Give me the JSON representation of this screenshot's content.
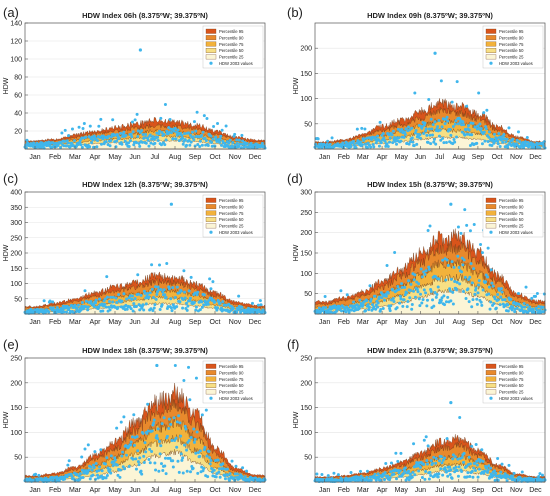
{
  "colors": {
    "p95": "#d9541b",
    "p90": "#e8892c",
    "p75": "#f2b23b",
    "p50": "#f7df84",
    "p25": "#fbf5d6",
    "points": "#3fb6ec",
    "axis": "#555555",
    "grid": "#e5e5e5"
  },
  "legend": {
    "p95": "Percentile 95",
    "p90": "Percentile 90",
    "p75": "Percentile 75",
    "p50": "Percentile 50",
    "p25": "Percentile 25",
    "points": "HDW 2003 values"
  },
  "chart_data": [
    {
      "type": "area",
      "panel_label": "(a)",
      "title": "HDW Index 06h (8.375ºW; 39.375ºN)",
      "ylabel": "HDW",
      "x_categories": [
        "Jan",
        "Feb",
        "Mar",
        "Apr",
        "May",
        "Jun",
        "Jul",
        "Aug",
        "Sep",
        "Oct",
        "Nov",
        "Dec"
      ],
      "ylim": [
        0,
        140
      ],
      "yticks": [
        20,
        40,
        60,
        80,
        100,
        120,
        140
      ],
      "series": [
        {
          "name": "Percentile 95",
          "monthly_values": [
            9,
            11,
            16,
            20,
            24,
            28,
            32,
            30,
            27,
            20,
            13,
            10
          ]
        },
        {
          "name": "Percentile 90",
          "monthly_values": [
            8,
            9,
            13,
            17,
            20,
            23,
            26,
            25,
            22,
            16,
            11,
            8
          ]
        },
        {
          "name": "Percentile 75",
          "monthly_values": [
            6,
            7,
            10,
            13,
            15,
            17,
            20,
            19,
            17,
            12,
            8,
            6
          ]
        },
        {
          "name": "Percentile 50",
          "monthly_values": [
            4,
            5,
            7,
            9,
            11,
            12,
            14,
            14,
            12,
            9,
            6,
            4
          ]
        },
        {
          "name": "Percentile 25",
          "monthly_values": [
            3,
            3,
            4,
            6,
            7,
            8,
            9,
            9,
            8,
            6,
            4,
            3
          ]
        }
      ],
      "hdw_2003": {
        "name": "HDW 2003 values",
        "max_value": 110
      }
    },
    {
      "type": "area",
      "panel_label": "(b)",
      "title": "HDW Index 09h (8.375ºW; 39.375ºN)",
      "ylabel": "HDW",
      "x_categories": [
        "Jan",
        "Feb",
        "Mar",
        "Apr",
        "May",
        "Jun",
        "Jul",
        "Aug",
        "Sep",
        "Oct",
        "Nov",
        "Dec"
      ],
      "ylim": [
        0,
        250
      ],
      "yticks": [
        50,
        100,
        150,
        200
      ],
      "series": [
        {
          "name": "Percentile 95",
          "monthly_values": [
            14,
            18,
            30,
            45,
            58,
            75,
            92,
            85,
            70,
            45,
            25,
            15
          ]
        },
        {
          "name": "Percentile 90",
          "monthly_values": [
            12,
            15,
            25,
            37,
            48,
            62,
            76,
            72,
            60,
            38,
            21,
            13
          ]
        },
        {
          "name": "Percentile 75",
          "monthly_values": [
            9,
            11,
            18,
            27,
            35,
            46,
            56,
            53,
            45,
            28,
            16,
            10
          ]
        },
        {
          "name": "Percentile 50",
          "monthly_values": [
            6,
            8,
            12,
            18,
            24,
            31,
            38,
            36,
            30,
            19,
            11,
            7
          ]
        },
        {
          "name": "Percentile 25",
          "monthly_values": [
            4,
            5,
            8,
            11,
            15,
            19,
            23,
            22,
            19,
            12,
            7,
            5
          ]
        }
      ],
      "hdw_2003": {
        "name": "HDW 2003 values",
        "max_value": 190
      }
    },
    {
      "type": "area",
      "panel_label": "(c)",
      "title": "HDW Index 12h (8.375ºW; 39.375ºN)",
      "ylabel": "HDW",
      "x_categories": [
        "Jan",
        "Feb",
        "Mar",
        "Apr",
        "May",
        "Jun",
        "Jul",
        "Aug",
        "Sep",
        "Oct",
        "Nov",
        "Dec"
      ],
      "ylim": [
        0,
        400
      ],
      "yticks": [
        50,
        100,
        150,
        200,
        250,
        300,
        350,
        400
      ],
      "series": [
        {
          "name": "Percentile 95",
          "monthly_values": [
            25,
            35,
            50,
            70,
            90,
            105,
            125,
            120,
            100,
            70,
            40,
            28
          ]
        },
        {
          "name": "Percentile 90",
          "monthly_values": [
            20,
            29,
            42,
            58,
            75,
            88,
            105,
            102,
            85,
            58,
            33,
            22
          ]
        },
        {
          "name": "Percentile 75",
          "monthly_values": [
            14,
            20,
            30,
            42,
            55,
            65,
            78,
            76,
            63,
            42,
            24,
            16
          ]
        },
        {
          "name": "Percentile 50",
          "monthly_values": [
            9,
            13,
            20,
            28,
            37,
            45,
            54,
            52,
            43,
            29,
            16,
            10
          ]
        },
        {
          "name": "Percentile 25",
          "monthly_values": [
            5,
            8,
            12,
            17,
            23,
            28,
            34,
            33,
            27,
            18,
            10,
            6
          ]
        }
      ],
      "hdw_2003": {
        "name": "HDW 2003 values",
        "max_value": 360
      }
    },
    {
      "type": "area",
      "panel_label": "(d)",
      "title": "HDW Index 15h (8.375ºW; 39.375ºN)",
      "ylabel": "HDW",
      "x_categories": [
        "Jan",
        "Feb",
        "Mar",
        "Apr",
        "May",
        "Jun",
        "Jul",
        "Aug",
        "Sep",
        "Oct",
        "Nov",
        "Dec"
      ],
      "ylim": [
        0,
        300
      ],
      "yticks": [
        50,
        100,
        150,
        200,
        250,
        300
      ],
      "series": [
        {
          "name": "Percentile 95",
          "monthly_values": [
            30,
            40,
            55,
            80,
            110,
            150,
            185,
            190,
            150,
            95,
            50,
            32
          ]
        },
        {
          "name": "Percentile 90",
          "monthly_values": [
            24,
            32,
            45,
            66,
            92,
            128,
            160,
            165,
            130,
            80,
            41,
            26
          ]
        },
        {
          "name": "Percentile 75",
          "monthly_values": [
            16,
            22,
            32,
            48,
            68,
            96,
            122,
            126,
            98,
            58,
            29,
            18
          ]
        },
        {
          "name": "Percentile 50",
          "monthly_values": [
            10,
            14,
            21,
            32,
            46,
            66,
            86,
            90,
            68,
            39,
            19,
            11
          ]
        },
        {
          "name": "Percentile 25",
          "monthly_values": [
            6,
            8,
            12,
            19,
            28,
            41,
            55,
            58,
            43,
            24,
            11,
            7
          ]
        }
      ],
      "hdw_2003": {
        "name": "HDW 2003 values",
        "max_value": 270
      }
    },
    {
      "type": "area",
      "panel_label": "(e)",
      "title": "HDW Index 18h (8.375ºW; 39.375ºN)",
      "ylabel": "HDW",
      "x_categories": [
        "Jan",
        "Feb",
        "Mar",
        "Apr",
        "May",
        "Jun",
        "Jul",
        "Aug",
        "Sep",
        "Oct",
        "Nov",
        "Dec"
      ],
      "ylim": [
        0,
        250
      ],
      "yticks": [
        50,
        100,
        150,
        200,
        250
      ],
      "series": [
        {
          "name": "Percentile 95",
          "monthly_values": [
            12,
            18,
            30,
            55,
            80,
            120,
            160,
            180,
            140,
            70,
            28,
            14
          ]
        },
        {
          "name": "Percentile 90",
          "monthly_values": [
            10,
            14,
            25,
            46,
            67,
            103,
            140,
            158,
            120,
            58,
            22,
            11
          ]
        },
        {
          "name": "Percentile 75",
          "monthly_values": [
            7,
            10,
            18,
            33,
            50,
            78,
            108,
            122,
            90,
            42,
            16,
            8
          ]
        },
        {
          "name": "Percentile 50",
          "monthly_values": [
            4,
            6,
            12,
            22,
            34,
            55,
            78,
            88,
            63,
            28,
            10,
            5
          ]
        },
        {
          "name": "Percentile 25",
          "monthly_values": [
            2,
            4,
            7,
            13,
            21,
            35,
            52,
            60,
            40,
            17,
            6,
            3
          ]
        }
      ],
      "hdw_2003": {
        "name": "HDW 2003 values",
        "max_value": 235
      }
    },
    {
      "type": "area",
      "panel_label": "(f)",
      "title": "HDW Index 21h (8.375ºW; 39.375ºN)",
      "ylabel": "HDW",
      "x_categories": [
        "Jan",
        "Feb",
        "Mar",
        "Apr",
        "May",
        "Jun",
        "Jul",
        "Aug",
        "Sep",
        "Oct",
        "Nov",
        "Dec"
      ],
      "ylim": [
        0,
        250
      ],
      "yticks": [
        50,
        100,
        150,
        200,
        250
      ],
      "series": [
        {
          "name": "Percentile 95",
          "monthly_values": [
            10,
            13,
            18,
            28,
            40,
            58,
            80,
            88,
            65,
            35,
            16,
            11
          ]
        },
        {
          "name": "Percentile 90",
          "monthly_values": [
            8,
            10,
            15,
            23,
            33,
            48,
            66,
            73,
            54,
            29,
            13,
            9
          ]
        },
        {
          "name": "Percentile 75",
          "monthly_values": [
            6,
            7,
            11,
            17,
            24,
            35,
            48,
            53,
            40,
            21,
            10,
            6
          ]
        },
        {
          "name": "Percentile 50",
          "monthly_values": [
            4,
            5,
            7,
            11,
            16,
            24,
            33,
            36,
            27,
            14,
            6,
            4
          ]
        },
        {
          "name": "Percentile 25",
          "monthly_values": [
            2,
            3,
            4,
            7,
            10,
            15,
            21,
            23,
            17,
            9,
            4,
            2
          ]
        }
      ],
      "hdw_2003": {
        "name": "HDW 2003 values",
        "max_value": 160
      }
    }
  ]
}
